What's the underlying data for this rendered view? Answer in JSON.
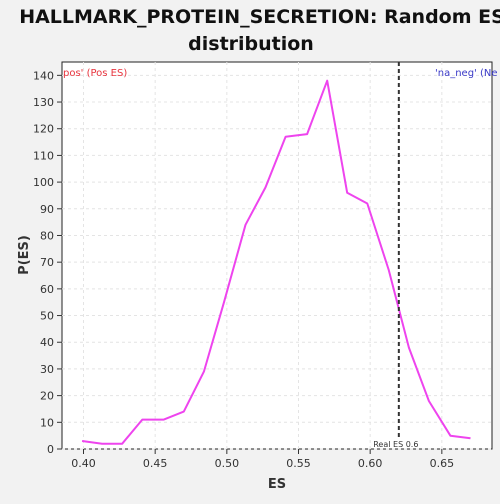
{
  "chart_data": {
    "type": "line",
    "title_lines": [
      "HALLMARK_PROTEIN_SECRETION: Random ES",
      "distribution"
    ],
    "xlabel": "ES",
    "ylabel": "P(ES)",
    "xlim": [
      0.385,
      0.685
    ],
    "ylim": [
      0,
      145
    ],
    "xticks": [
      0.4,
      0.45,
      0.5,
      0.55,
      0.6,
      0.65
    ],
    "xtick_labels": [
      "0.40",
      "0.45",
      "0.50",
      "0.55",
      "0.60",
      "0.65"
    ],
    "yticks": [
      0,
      10,
      20,
      30,
      40,
      50,
      60,
      70,
      80,
      90,
      100,
      110,
      120,
      130,
      140
    ],
    "ytick_labels": [
      "0",
      "10",
      "20",
      "30",
      "40",
      "50",
      "60",
      "70",
      "80",
      "90",
      "100",
      "110",
      "120",
      "130",
      "140"
    ],
    "grid": true,
    "series": [
      {
        "color": "#ee44ee",
        "x": [
          0.399,
          0.413,
          0.427,
          0.441,
          0.456,
          0.47,
          0.484,
          0.498,
          0.513,
          0.527,
          0.541,
          0.556,
          0.57,
          0.584,
          0.598,
          0.613,
          0.627,
          0.641,
          0.656,
          0.67
        ],
        "y": [
          3,
          2,
          2,
          11,
          11,
          14,
          29,
          55,
          84,
          98,
          117,
          118,
          138,
          96,
          92,
          67,
          38,
          18,
          5,
          4
        ]
      }
    ],
    "vline": {
      "x": 0.62,
      "color": "#333333",
      "label": "Real ES 0.6"
    },
    "corner_left_text": "pos' (Pos ES)",
    "corner_left_color": "#e8343e",
    "corner_right_text": "'na_neg' (Ne",
    "corner_right_color": "#3a3ac8"
  }
}
